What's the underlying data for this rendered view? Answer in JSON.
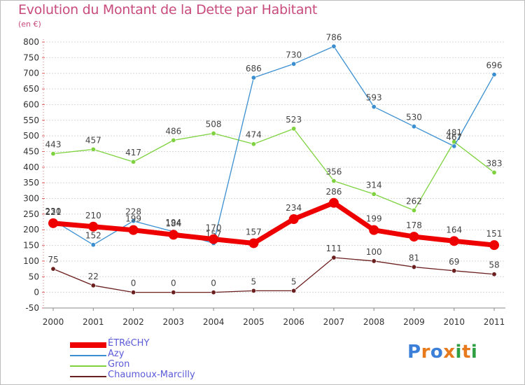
{
  "chart_data": {
    "type": "line",
    "title": "Evolution du Montant de la Dette par Habitant",
    "unit_label": "(en €)",
    "x": [
      "2000",
      "2001",
      "2002",
      "2003",
      "2004",
      "2005",
      "2006",
      "2007",
      "2008",
      "2009",
      "2010",
      "2011"
    ],
    "ylim": [
      -50,
      800
    ],
    "yticks": [
      -50,
      0,
      50,
      100,
      150,
      200,
      250,
      300,
      350,
      400,
      450,
      500,
      550,
      600,
      650,
      700,
      750,
      800
    ],
    "grid": "horizontal",
    "legend_position": "bottom-left",
    "series": [
      {
        "name": "ÉTRéCHY",
        "color": "#ee0000",
        "values": [
          221,
          210,
          199,
          184,
          170,
          157,
          234,
          286,
          199,
          178,
          164,
          151
        ],
        "labels": [
          "221",
          "210",
          "199",
          "184",
          "170",
          "157",
          "234",
          "286",
          "199",
          "178",
          "164",
          "151"
        ]
      },
      {
        "name": "Azy",
        "color": "#3b8fd0",
        "values": [
          230,
          152,
          228,
          194,
          157,
          686,
          730,
          786,
          593,
          530,
          467,
          696
        ],
        "labels": [
          "230",
          "152",
          "228",
          "194",
          "157",
          "686",
          "730",
          "786",
          "593",
          "530",
          "467",
          "696"
        ]
      },
      {
        "name": "Gron",
        "color": "#7ed23e",
        "values": [
          443,
          457,
          417,
          486,
          508,
          474,
          523,
          356,
          314,
          262,
          481,
          383
        ],
        "labels": [
          "443",
          "457",
          "417",
          "486",
          "508",
          "474",
          "523",
          "356",
          "314",
          "262",
          "481",
          "383"
        ]
      },
      {
        "name": "Chaumoux-Marcilly",
        "color": "#6b1f1f",
        "values": [
          75,
          22,
          0,
          0,
          0,
          5,
          5,
          111,
          100,
          81,
          69,
          58
        ],
        "labels": [
          "75",
          "22",
          "0",
          "0",
          "0",
          "5",
          "5",
          "111",
          "100",
          "81",
          "69",
          "58"
        ]
      }
    ]
  },
  "logo": {
    "letters": [
      "P",
      "r",
      "o",
      "x",
      "i",
      "t",
      "i"
    ],
    "colors": [
      "#3b7fd8",
      "#e67a1c",
      "#3b7fd8",
      "#e67a1c",
      "#2ea043",
      "#e67a1c",
      "#2ea043"
    ]
  }
}
